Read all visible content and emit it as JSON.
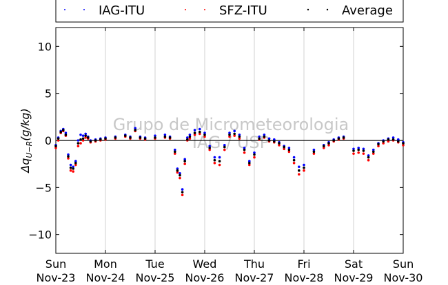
{
  "chart_data": {
    "type": "scatter",
    "ylabel": "Δq_{U−R}(g/kg)",
    "ylim": [
      -12,
      12
    ],
    "yticks": [
      10,
      5,
      0,
      -5,
      -10
    ],
    "xlim": [
      0,
      7
    ],
    "xtick_labels": [
      {
        "day": "Sun",
        "date": "Nov-23"
      },
      {
        "day": "Mon",
        "date": "Nov-24"
      },
      {
        "day": "Tue",
        "date": "Nov-25"
      },
      {
        "day": "Wed",
        "date": "Nov-26"
      },
      {
        "day": "Thu",
        "date": "Nov-27"
      },
      {
        "day": "Fri",
        "date": "Nov-28"
      },
      {
        "day": "Sat",
        "date": "Nov-29"
      },
      {
        "day": "Sun",
        "date": "Nov-30"
      }
    ],
    "grid": "vertical",
    "zero_line": true,
    "legend_position": "top",
    "watermark": [
      "Grupo de Micrometeorologia",
      "IAG / USP"
    ],
    "x_units": "days since Nov-23 00:00",
    "series": [
      {
        "name": "IAG-ITU",
        "color": "#0000ff",
        "x": [
          0,
          0.05,
          0.1,
          0.15,
          0.2,
          0.25,
          0.3,
          0.35,
          0.4,
          0.45,
          0.5,
          0.55,
          0.6,
          0.65,
          0.7,
          0.8,
          0.9,
          1.0,
          1.2,
          1.4,
          1.5,
          1.6,
          1.7,
          1.8,
          2.0,
          2.2,
          2.3,
          2.4,
          2.45,
          2.5,
          2.55,
          2.6,
          2.65,
          2.7,
          2.8,
          2.9,
          3.0,
          3.1,
          3.2,
          3.3,
          3.4,
          3.5,
          3.6,
          3.7,
          3.8,
          3.9,
          4.0,
          4.1,
          4.2,
          4.3,
          4.4,
          4.5,
          4.6,
          4.7,
          4.8,
          4.9,
          5.0,
          5.2,
          5.4,
          5.5,
          5.6,
          5.7,
          5.8,
          6.0,
          6.1,
          6.2,
          6.3,
          6.4,
          6.5,
          6.6,
          6.7,
          6.8,
          6.9,
          7.0
        ],
        "y": [
          -0.5,
          0.3,
          1.0,
          1.2,
          0.8,
          -1.5,
          -2.6,
          -2.8,
          -2.2,
          0.0,
          0.6,
          0.5,
          0.7,
          0.4,
          0.0,
          0.1,
          0.2,
          0.3,
          0.4,
          0.6,
          0.4,
          1.3,
          0.4,
          0.3,
          0.5,
          0.6,
          0.4,
          -1.0,
          -3.0,
          -3.5,
          -5.2,
          -2.0,
          0.3,
          0.6,
          1.1,
          1.2,
          0.8,
          -0.6,
          -1.8,
          -1.8,
          -0.5,
          0.8,
          1.0,
          0.6,
          -0.8,
          -2.2,
          -1.3,
          0.4,
          0.6,
          0.2,
          0.1,
          -0.2,
          -0.6,
          -0.8,
          -1.8,
          -2.8,
          -2.6,
          -1.0,
          -0.5,
          -0.2,
          0.1,
          0.3,
          0.4,
          -0.9,
          -0.8,
          -0.9,
          -1.6,
          -1.0,
          -0.3,
          0.0,
          0.2,
          0.3,
          0.1,
          -0.2
        ]
      },
      {
        "name": "SFZ-ITU",
        "color": "#ff0000",
        "x": [
          0,
          0.05,
          0.1,
          0.15,
          0.2,
          0.25,
          0.3,
          0.35,
          0.4,
          0.45,
          0.5,
          0.55,
          0.6,
          0.65,
          0.7,
          0.8,
          0.9,
          1.0,
          1.2,
          1.4,
          1.5,
          1.6,
          1.7,
          1.8,
          2.0,
          2.2,
          2.3,
          2.4,
          2.45,
          2.5,
          2.55,
          2.6,
          2.65,
          2.7,
          2.8,
          2.9,
          3.0,
          3.1,
          3.2,
          3.3,
          3.4,
          3.5,
          3.6,
          3.7,
          3.8,
          3.9,
          4.0,
          4.1,
          4.2,
          4.3,
          4.4,
          4.5,
          4.6,
          4.7,
          4.8,
          4.9,
          5.0,
          5.2,
          5.4,
          5.5,
          5.6,
          5.7,
          5.8,
          6.0,
          6.1,
          6.2,
          6.3,
          6.4,
          6.5,
          6.6,
          6.7,
          6.8,
          6.9,
          7.0
        ],
        "y": [
          -0.8,
          0.0,
          0.8,
          1.0,
          0.5,
          -1.9,
          -3.2,
          -3.3,
          -2.6,
          -0.6,
          -0.3,
          0.0,
          0.3,
          0.2,
          -0.2,
          -0.1,
          0.0,
          0.1,
          0.2,
          0.4,
          0.2,
          1.0,
          0.2,
          0.1,
          0.2,
          0.3,
          0.2,
          -1.4,
          -3.4,
          -4.0,
          -5.8,
          -2.5,
          0.0,
          0.2,
          0.6,
          0.7,
          0.4,
          -1.0,
          -2.4,
          -2.6,
          -1.0,
          0.4,
          0.5,
          0.2,
          -1.3,
          -2.6,
          -1.8,
          0.1,
          0.3,
          -0.1,
          -0.2,
          -0.5,
          -0.9,
          -1.2,
          -2.4,
          -3.6,
          -3.2,
          -1.4,
          -0.8,
          -0.5,
          -0.1,
          0.1,
          0.2,
          -1.4,
          -1.3,
          -1.4,
          -2.1,
          -1.4,
          -0.6,
          -0.3,
          -0.1,
          0.0,
          -0.2,
          -0.5
        ]
      },
      {
        "name": "Average",
        "color": "#000000",
        "x": [
          0,
          0.05,
          0.1,
          0.15,
          0.2,
          0.25,
          0.3,
          0.35,
          0.4,
          0.45,
          0.5,
          0.55,
          0.6,
          0.65,
          0.7,
          0.8,
          0.9,
          1.0,
          1.2,
          1.4,
          1.5,
          1.6,
          1.7,
          1.8,
          2.0,
          2.2,
          2.3,
          2.4,
          2.45,
          2.5,
          2.55,
          2.6,
          2.65,
          2.7,
          2.8,
          2.9,
          3.0,
          3.1,
          3.2,
          3.3,
          3.4,
          3.5,
          3.6,
          3.7,
          3.8,
          3.9,
          4.0,
          4.1,
          4.2,
          4.3,
          4.4,
          4.5,
          4.6,
          4.7,
          4.8,
          4.9,
          5.0,
          5.2,
          5.4,
          5.5,
          5.6,
          5.7,
          5.8,
          6.0,
          6.1,
          6.2,
          6.3,
          6.4,
          6.5,
          6.6,
          6.7,
          6.8,
          6.9,
          7.0
        ],
        "y": [
          -0.6,
          0.2,
          0.9,
          1.1,
          0.6,
          -1.7,
          -2.9,
          -3.0,
          -2.4,
          -0.3,
          0.1,
          0.2,
          0.5,
          0.3,
          -0.1,
          0.0,
          0.1,
          0.2,
          0.3,
          0.5,
          0.3,
          1.1,
          0.3,
          0.2,
          0.3,
          0.4,
          0.3,
          -1.2,
          -3.2,
          -3.7,
          -5.5,
          -2.2,
          0.1,
          0.4,
          0.8,
          0.9,
          0.6,
          -0.8,
          -2.1,
          -2.2,
          -0.7,
          0.6,
          0.7,
          0.4,
          -1.0,
          -2.4,
          -1.5,
          0.2,
          0.4,
          0.0,
          -0.1,
          -0.3,
          -0.7,
          -1.0,
          -2.1,
          -3.2,
          -2.9,
          -1.2,
          -0.6,
          -0.3,
          0.0,
          0.2,
          0.3,
          -1.1,
          -1.0,
          -1.1,
          -1.8,
          -1.2,
          -0.4,
          -0.1,
          0.1,
          0.1,
          -0.1,
          -0.3
        ]
      }
    ]
  }
}
